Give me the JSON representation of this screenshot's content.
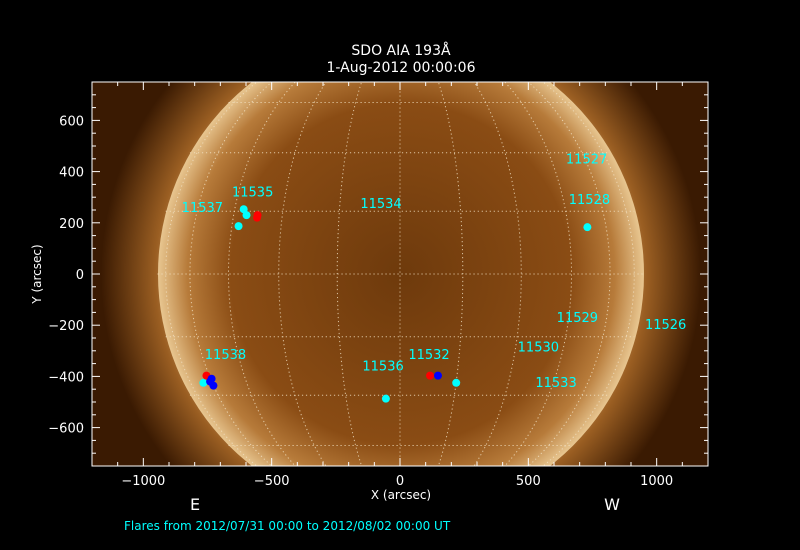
{
  "chart_data": {
    "type": "scatter",
    "title": "SDO AIA 193Å",
    "subtitle": "1-Aug-2012 00:00:06",
    "xlabel": "X (arcsec)",
    "ylabel": "Y (arcsec)",
    "xlim": [
      -1200,
      1200
    ],
    "ylim": [
      -750,
      750
    ],
    "xticks": [
      -1000,
      -500,
      0,
      500,
      1000
    ],
    "yticks": [
      -600,
      -400,
      -200,
      0,
      200,
      400,
      600
    ],
    "grid": "heliographic lat/long dotted",
    "background_image": "solar disk, AIA 193 colormap",
    "colors": {
      "label": "#00ffff",
      "cyan_marker": "#00ffff",
      "red_marker": "#ff0000",
      "blue_marker": "#0000ff",
      "sun_dark": "#5a2c05",
      "sun_bright": "#f6e3c0"
    },
    "region_labels": [
      {
        "text": "11527",
        "x": 727,
        "y": 452
      },
      {
        "text": "11535",
        "x": -574,
        "y": 323
      },
      {
        "text": "11537",
        "x": -770,
        "y": 261
      },
      {
        "text": "11534",
        "x": -74,
        "y": 277
      },
      {
        "text": "11528",
        "x": 738,
        "y": 292
      },
      {
        "text": "11529",
        "x": 691,
        "y": -168
      },
      {
        "text": "11526",
        "x": 1035,
        "y": -195
      },
      {
        "text": "11538",
        "x": -680,
        "y": -312
      },
      {
        "text": "11532",
        "x": 113,
        "y": -312
      },
      {
        "text": "11530",
        "x": 539,
        "y": -284
      },
      {
        "text": "11536",
        "x": -66,
        "y": -358
      },
      {
        "text": "11533",
        "x": 608,
        "y": -421
      }
    ],
    "series": [
      {
        "color": "#00ffff",
        "points": [
          [
            -609,
            253
          ],
          [
            -598,
            230
          ],
          [
            -629,
            187
          ],
          [
            730,
            183
          ],
          [
            -766,
            -425
          ],
          [
            -55,
            -487
          ],
          [
            219,
            -425
          ]
        ]
      },
      {
        "color": "#ff0000",
        "points": [
          [
            -555,
            230
          ],
          [
            -557,
            220
          ],
          [
            -754,
            -397
          ],
          [
            117,
            -397
          ]
        ]
      },
      {
        "color": "#0000ff",
        "points": [
          [
            148,
            -397
          ],
          [
            -734,
            -409
          ],
          [
            -727,
            -436
          ],
          [
            -740,
            -420
          ]
        ]
      }
    ]
  },
  "annotations": {
    "east": "E",
    "west": "W"
  },
  "footer": "Flares from 2012/07/31 00:00 to 2012/08/02 00:00 UT"
}
